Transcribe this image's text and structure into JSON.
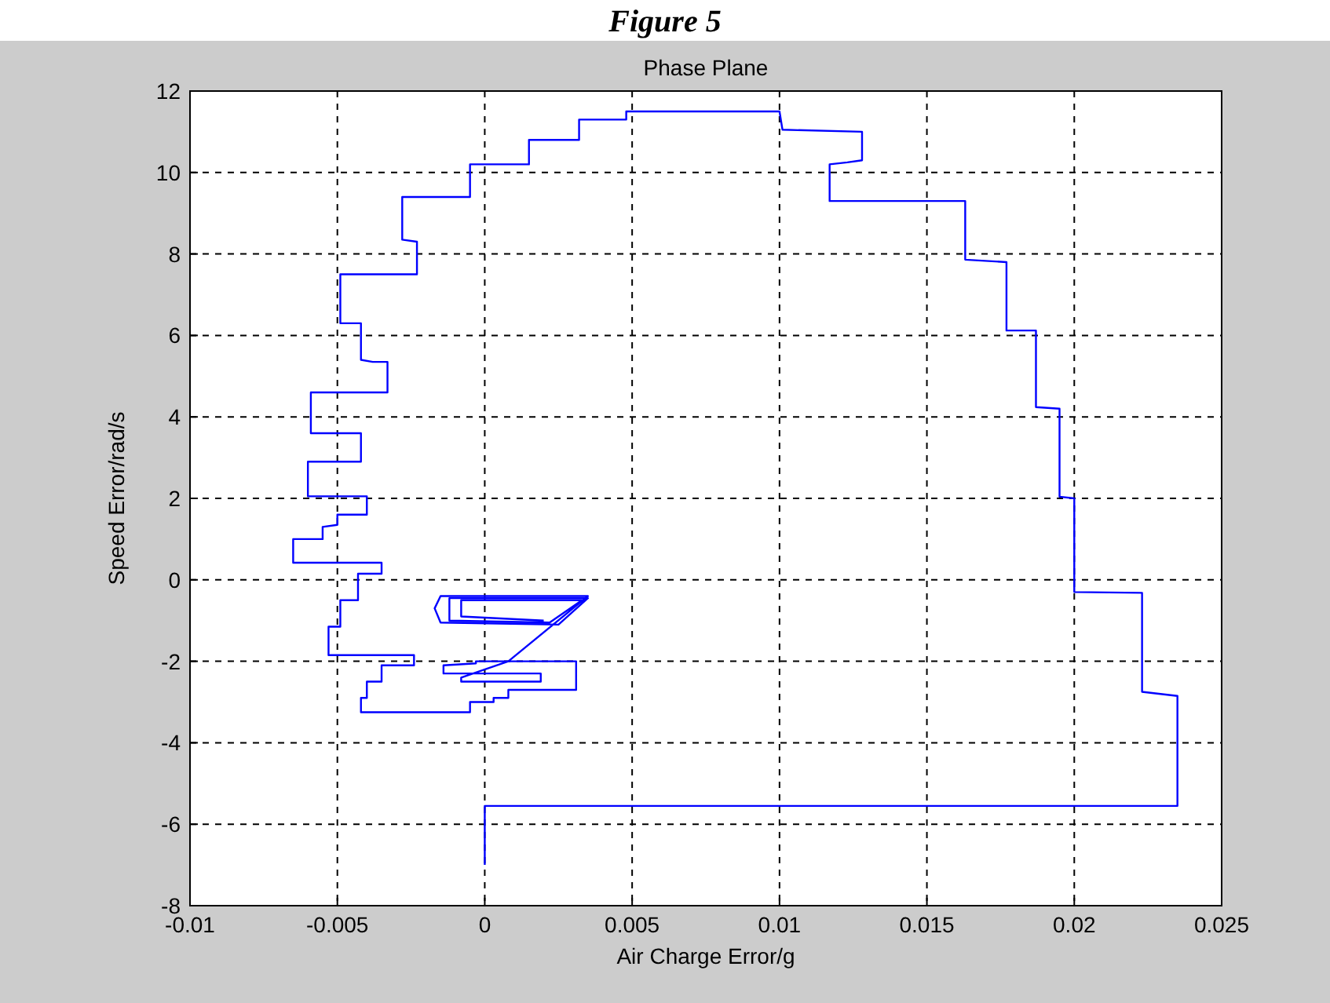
{
  "chart_data": {
    "type": "line",
    "title": "Phase Plane",
    "xlabel": "Air Charge Error/g",
    "ylabel": "Speed Error/rad/s",
    "annotations": [
      "Figure 5"
    ],
    "xlim": [
      -0.01,
      0.025
    ],
    "xticks": [
      -0.01,
      -0.005,
      0,
      0.005,
      0.01,
      0.015,
      0.02,
      0.025
    ],
    "ylim": [
      -8,
      12
    ],
    "yticks": [
      -8,
      -6,
      -4,
      -2,
      0,
      2,
      4,
      6,
      8,
      10,
      12
    ],
    "grid": true,
    "marker": "none",
    "line_style": "solid",
    "series": [
      {
        "color": "#0000ff",
        "x": [
          0,
          0,
          0.0235,
          0.0235,
          0.0223,
          0.0223,
          0.02,
          0.02,
          0.0195,
          0.0195,
          0.0187,
          0.0187,
          0.0177,
          0.0177,
          0.0163,
          0.0163,
          0.0117,
          0.0117,
          0.0123,
          0.0128,
          0.0128,
          0.0101,
          0.01,
          0.0048,
          0.0048,
          0.0032,
          0.0032,
          0.0015,
          0.0015,
          -0.0005,
          -0.0005,
          -0.0028,
          -0.0028,
          -0.0023,
          -0.0023,
          -0.0049,
          -0.0049,
          -0.0042,
          -0.0042,
          -0.0038,
          -0.0033,
          -0.0033,
          -0.0059,
          -0.0059,
          -0.0042,
          -0.0042,
          -0.006,
          -0.006,
          -0.004,
          -0.004,
          -0.005,
          -0.005,
          -0.0055,
          -0.0055,
          -0.0065,
          -0.0065,
          -0.0035,
          -0.0035,
          -0.0043,
          -0.0043,
          -0.0049,
          -0.0049,
          -0.0053,
          -0.0053,
          -0.0024,
          -0.0024,
          -0.0035,
          -0.0035,
          -0.004,
          -0.004,
          -0.0042,
          -0.0042,
          -0.0005,
          -0.0005,
          0.0003,
          0.0003,
          0.0008,
          0.0008,
          0.0031,
          0.0031,
          -0.0003,
          -0.0003,
          -0.0014,
          -0.0014,
          0.0019,
          0.0019,
          -0.0008,
          -0.0008,
          0.0008,
          0.0035,
          -0.0015,
          -0.0017,
          -0.0015,
          0.0025,
          0.0035,
          -0.0012,
          -0.0012,
          0.0022,
          0.0033,
          -0.0008,
          -0.0008,
          0.002
        ],
        "values": [
          -7,
          -5.55,
          -5.55,
          -2.85,
          -2.75,
          -0.32,
          -0.3,
          2.0,
          2.04,
          4.2,
          4.24,
          6.12,
          6.12,
          7.8,
          7.86,
          9.3,
          9.3,
          10.2,
          10.25,
          10.3,
          11.0,
          11.05,
          11.5,
          11.5,
          11.3,
          11.3,
          10.8,
          10.8,
          10.2,
          10.2,
          9.4,
          9.4,
          8.35,
          8.3,
          7.5,
          7.5,
          6.3,
          6.3,
          5.4,
          5.35,
          5.35,
          4.6,
          4.6,
          3.6,
          3.6,
          2.9,
          2.9,
          2.05,
          2.05,
          1.6,
          1.6,
          1.35,
          1.3,
          1.0,
          1.0,
          0.42,
          0.42,
          0.15,
          0.15,
          -0.5,
          -0.5,
          -1.15,
          -1.15,
          -1.85,
          -1.85,
          -2.1,
          -2.1,
          -2.5,
          -2.5,
          -2.9,
          -2.9,
          -3.25,
          -3.25,
          -3.0,
          -3.0,
          -2.9,
          -2.9,
          -2.7,
          -2.7,
          -2.0,
          -2.0,
          -2.05,
          -2.1,
          -2.3,
          -2.3,
          -2.5,
          -2.5,
          -2.4,
          -2.0,
          -0.4,
          -0.4,
          -0.7,
          -1.05,
          -1.1,
          -0.45,
          -0.45,
          -1.0,
          -1.05,
          -0.5,
          -0.5,
          -0.9,
          -1.0
        ]
      }
    ]
  }
}
